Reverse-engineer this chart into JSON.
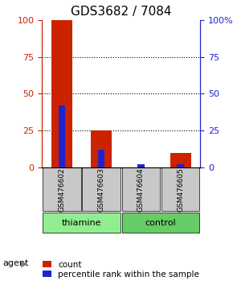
{
  "title": "GDS3682 / 7084",
  "samples": [
    "GSM476602",
    "GSM476603",
    "GSM476604",
    "GSM476605"
  ],
  "red_values": [
    100,
    25,
    0,
    10
  ],
  "blue_values": [
    42,
    12,
    2,
    2
  ],
  "ylim": [
    0,
    100
  ],
  "yticks": [
    0,
    25,
    50,
    75,
    100
  ],
  "grid_ticks": [
    25,
    50,
    75
  ],
  "groups": [
    {
      "label": "thiamine",
      "indices": [
        0,
        1
      ],
      "color": "#90EE90"
    },
    {
      "label": "control",
      "indices": [
        2,
        3
      ],
      "color": "#66CC66"
    }
  ],
  "bar_width": 0.35,
  "red_color": "#CC2200",
  "blue_color": "#2222CC",
  "left_axis_color": "#CC2200",
  "right_axis_color": "#2222CC",
  "bg_color": "#FFFFFF",
  "sample_area_color": "#C8C8C8",
  "agent_label": "agent",
  "legend_items": [
    {
      "color": "#CC2200",
      "label": "count"
    },
    {
      "color": "#2222CC",
      "label": "percentile rank within the sample"
    }
  ],
  "title_fontsize": 11,
  "tick_fontsize": 8,
  "label_fontsize": 8,
  "legend_fontsize": 7.5
}
